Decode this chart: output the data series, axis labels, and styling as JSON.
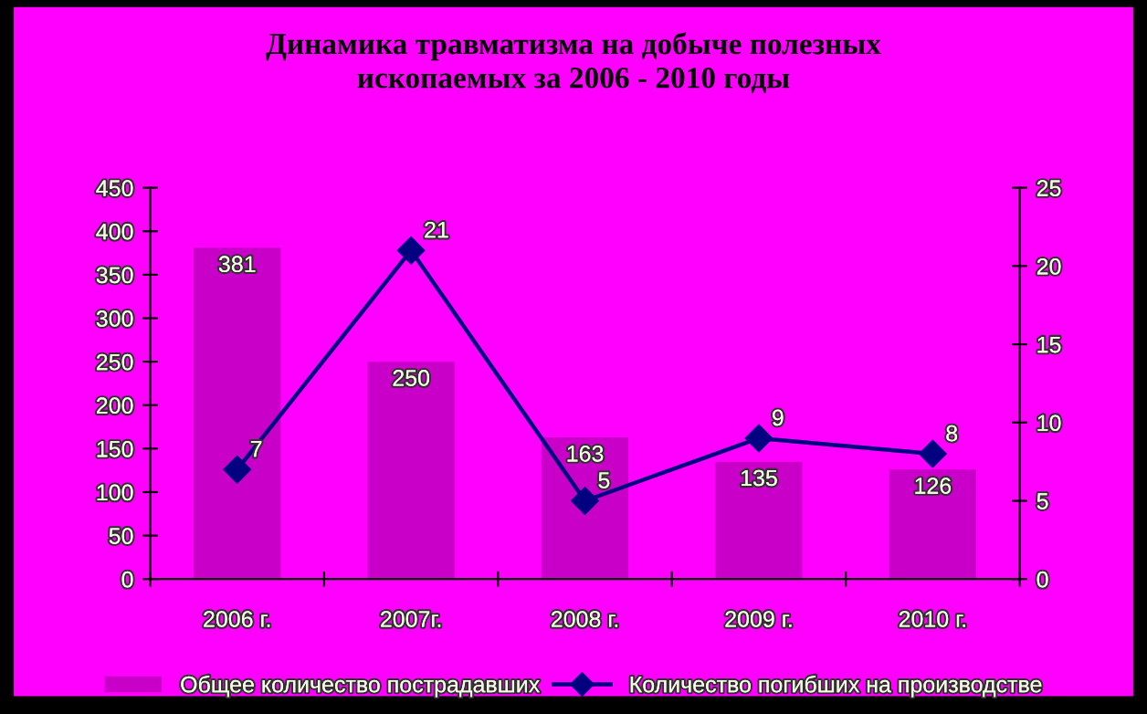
{
  "chart_data": {
    "type": "bar",
    "title": "Динамика травматизма на добыче полезных\nископаемых за 2006 - 2010 годы",
    "categories": [
      "2006 г.",
      "2007г.",
      "2008 г.",
      "2009 г.",
      "2010 г."
    ],
    "series": [
      {
        "name": "Общее количество пострадавших",
        "color": "#c800c8",
        "values": [
          381,
          250,
          163,
          135,
          126
        ]
      },
      {
        "name": "Количество погибших на производстве",
        "type": "line",
        "axis": "y2",
        "color": "#000080",
        "values": [
          7,
          21,
          5,
          9,
          8
        ],
        "marker": "diamond"
      }
    ],
    "data_labels": true,
    "ylim": [
      0,
      450
    ],
    "yticks": [
      0,
      50,
      100,
      150,
      200,
      250,
      300,
      350,
      400,
      450
    ],
    "y2lim": [
      0,
      25
    ],
    "y2ticks": [
      0,
      5,
      10,
      15,
      20,
      25
    ],
    "grid": false,
    "legend": "bottom"
  }
}
